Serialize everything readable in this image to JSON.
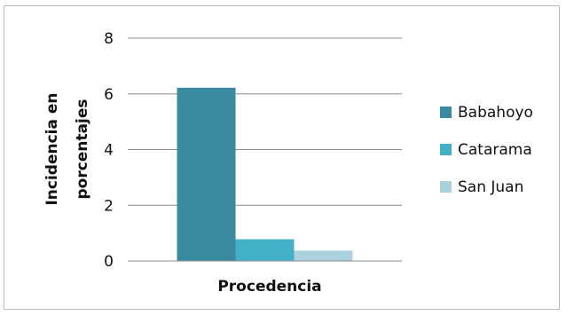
{
  "chart_data": {
    "type": "bar",
    "title": "",
    "categories": [
      "Procedencia"
    ],
    "series": [
      {
        "name": "Babahoyo",
        "values": [
          6.22
        ],
        "color": "#3a8a9f"
      },
      {
        "name": "Catarama",
        "values": [
          0.78
        ],
        "color": "#42b0c6"
      },
      {
        "name": "San Juan",
        "values": [
          0.37
        ],
        "color": "#a9d2de"
      }
    ],
    "xlabel": "Procedencia",
    "ylabel_lines": [
      "Incidencia en",
      "porcentajes"
    ],
    "ylim": [
      0,
      8
    ],
    "yticks": [
      0,
      2,
      4,
      6,
      8
    ],
    "grid": true,
    "legend_position": "right"
  }
}
